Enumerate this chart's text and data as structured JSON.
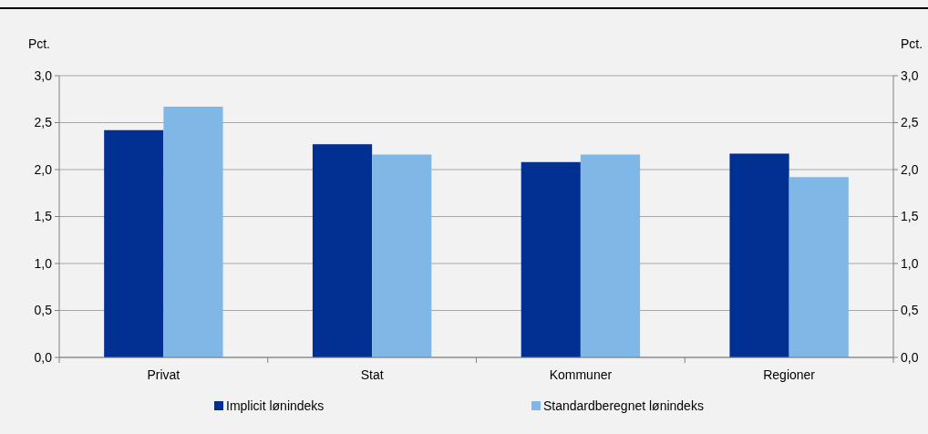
{
  "chart_data": {
    "type": "bar",
    "ylabel": "Pct.",
    "y2label": "Pct.",
    "categories": [
      "Privat",
      "Stat",
      "Kommuner",
      "Regioner"
    ],
    "series": [
      {
        "name": "Implicit lønindeks",
        "color": "#003092",
        "values": [
          2.42,
          2.27,
          2.08,
          2.17
        ]
      },
      {
        "name": "Standardberegnet lønindeks",
        "color": "#7fb8e6",
        "values": [
          2.67,
          2.16,
          2.16,
          1.92
        ]
      }
    ],
    "ylim": [
      0,
      3
    ],
    "yticks": [
      {
        "value": 0,
        "label": "0,0"
      },
      {
        "value": 0.5,
        "label": "0,5"
      },
      {
        "value": 1,
        "label": "1,0"
      },
      {
        "value": 1.5,
        "label": "1,5"
      },
      {
        "value": 2,
        "label": "2,0"
      },
      {
        "value": 2.5,
        "label": "2,5"
      },
      {
        "value": 3,
        "label": "3,0"
      }
    ],
    "y2lim": [
      0,
      3
    ],
    "y2ticks": [
      {
        "value": 0,
        "label": "0,0"
      },
      {
        "value": 0.5,
        "label": "0,5"
      },
      {
        "value": 1,
        "label": "1,0"
      },
      {
        "value": 1.5,
        "label": "1,5"
      },
      {
        "value": 2,
        "label": "2,0"
      },
      {
        "value": 2.5,
        "label": "2,5"
      },
      {
        "value": 3,
        "label": "3,0"
      }
    ],
    "grid": "y",
    "legend": "bottom"
  }
}
